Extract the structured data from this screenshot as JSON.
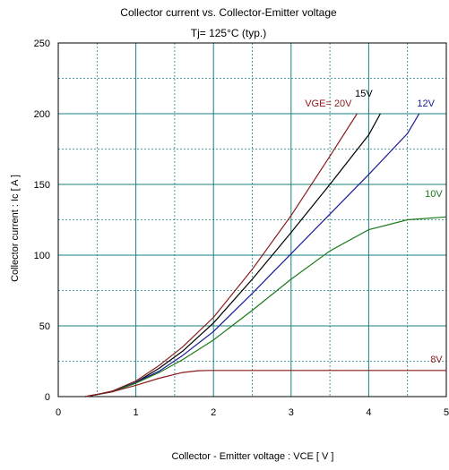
{
  "chart_data": {
    "type": "line",
    "title": "Collector current  vs.  Collector-Emitter voltage",
    "subtitle": "Tj= 125°C  (typ.)",
    "xlabel": "Collector - Emitter voltage  :  VCE  [ V ]",
    "ylabel": "Collector current  :  Ic  [ A ]",
    "xlim": [
      0,
      5
    ],
    "ylim": [
      0,
      250
    ],
    "xticks": [
      0,
      1,
      2,
      3,
      4,
      5
    ],
    "yticks": [
      0,
      50,
      100,
      150,
      200,
      250
    ],
    "grid": true,
    "minor_grid_step": {
      "x": 0.5,
      "y": 25
    },
    "series": [
      {
        "name": "VGE= 20V",
        "color": "#8b1a1a",
        "x": [
          0.35,
          0.5,
          0.7,
          1.0,
          1.3,
          1.6,
          2.0,
          2.5,
          3.0,
          3.5,
          3.85
        ],
        "y": [
          0,
          1.5,
          4,
          11,
          22,
          35,
          56,
          90,
          128,
          170,
          200
        ]
      },
      {
        "name": "15V",
        "color": "#000000",
        "x": [
          0.35,
          0.5,
          0.7,
          1.0,
          1.3,
          1.6,
          2.0,
          2.5,
          3.0,
          3.5,
          4.0,
          4.15
        ],
        "y": [
          0,
          1.5,
          3.5,
          10,
          20,
          32,
          52,
          83,
          116,
          150,
          185,
          200
        ]
      },
      {
        "name": "12V",
        "color": "#1a1a99",
        "x": [
          0.35,
          0.5,
          0.7,
          1.0,
          1.3,
          1.6,
          2.0,
          2.5,
          3.0,
          3.5,
          4.0,
          4.5,
          4.65
        ],
        "y": [
          0,
          1.5,
          3.5,
          10,
          18,
          29,
          46,
          73,
          101,
          129,
          157,
          186,
          200
        ]
      },
      {
        "name": "10V",
        "color": "#1a7a1a",
        "x": [
          0.35,
          0.5,
          0.7,
          1.0,
          1.3,
          1.6,
          2.0,
          2.5,
          3.0,
          3.5,
          4.0,
          4.5,
          5.0
        ],
        "y": [
          0,
          1.5,
          3.5,
          9.5,
          17,
          26,
          40,
          61,
          83,
          103,
          118,
          125,
          127
        ]
      },
      {
        "name": "8V",
        "color": "#8b1a1a",
        "x": [
          0.35,
          0.5,
          0.7,
          1.0,
          1.3,
          1.6,
          1.8,
          1.95,
          2.5,
          3.0,
          4.0,
          5.0
        ],
        "y": [
          0,
          1.5,
          3.5,
          8,
          13,
          17,
          18.3,
          18.5,
          18.5,
          18.5,
          18.5,
          18.5
        ]
      }
    ]
  }
}
